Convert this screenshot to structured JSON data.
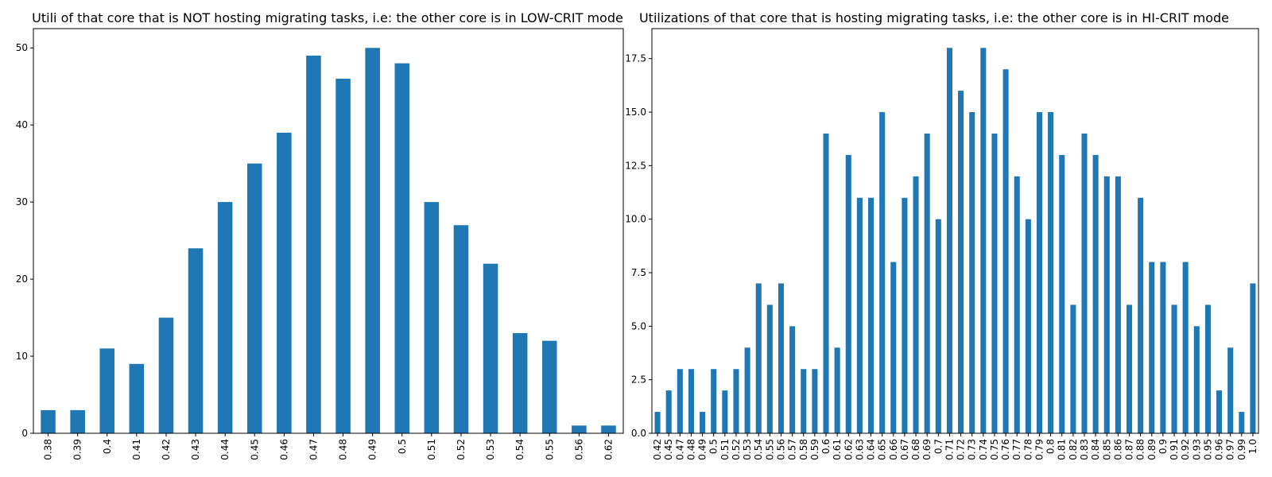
{
  "chart_data": [
    {
      "type": "bar",
      "title": "Utili of that core that is NOT hosting migrating tasks, i.e: the other core is in LOW-CRIT mode",
      "xlabel": "",
      "ylabel": "",
      "color": "#1f77b4",
      "categories": [
        "0.38",
        "0.39",
        "0.4",
        "0.41",
        "0.42",
        "0.43",
        "0.44",
        "0.45",
        "0.46",
        "0.47",
        "0.48",
        "0.49",
        "0.5",
        "0.51",
        "0.52",
        "0.53",
        "0.54",
        "0.55",
        "0.56",
        "0.62"
      ],
      "values": [
        3,
        3,
        11,
        9,
        15,
        24,
        30,
        35,
        39,
        49,
        46,
        50,
        48,
        30,
        27,
        22,
        13,
        12,
        1,
        1
      ],
      "ylim": [
        0,
        52.5
      ],
      "yticks": [
        0,
        10,
        20,
        30,
        40,
        50
      ],
      "ytick_labels": [
        "0",
        "10",
        "20",
        "30",
        "40",
        "50"
      ],
      "grid": false
    },
    {
      "type": "bar",
      "title": "Utilizations of that core that is hosting migrating tasks, i.e: the other core is in HI-CRIT mode",
      "xlabel": "",
      "ylabel": "",
      "color": "#1f77b4",
      "categories": [
        "0.42",
        "0.45",
        "0.47",
        "0.48",
        "0.49",
        "0.5",
        "0.51",
        "0.52",
        "0.53",
        "0.54",
        "0.55",
        "0.56",
        "0.57",
        "0.58",
        "0.59",
        "0.6",
        "0.61",
        "0.62",
        "0.63",
        "0.64",
        "0.65",
        "0.66",
        "0.67",
        "0.68",
        "0.69",
        "0.7",
        "0.71",
        "0.72",
        "0.73",
        "0.74",
        "0.75",
        "0.76",
        "0.77",
        "0.78",
        "0.79",
        "0.8",
        "0.81",
        "0.82",
        "0.83",
        "0.84",
        "0.85",
        "0.86",
        "0.87",
        "0.88",
        "0.89",
        "0.9",
        "0.91",
        "0.92",
        "0.93",
        "0.95",
        "0.96",
        "0.97",
        "0.99",
        "1.0"
      ],
      "values": [
        1,
        2,
        3,
        3,
        1,
        3,
        2,
        3,
        4,
        7,
        6,
        7,
        5,
        3,
        3,
        14,
        4,
        13,
        11,
        11,
        15,
        8,
        11,
        12,
        14,
        10,
        18,
        16,
        15,
        18,
        14,
        17,
        12,
        10,
        15,
        15,
        13,
        6,
        14,
        13,
        12,
        12,
        6,
        11,
        8,
        8,
        6,
        8,
        5,
        6,
        2,
        4,
        1,
        7
      ],
      "ylim": [
        0,
        18.9
      ],
      "yticks": [
        0,
        2.5,
        5,
        7.5,
        10,
        12.5,
        15,
        17.5
      ],
      "ytick_labels": [
        "0.0",
        "2.5",
        "5.0",
        "7.5",
        "10.0",
        "12.5",
        "15.0",
        "17.5"
      ],
      "grid": false
    }
  ]
}
